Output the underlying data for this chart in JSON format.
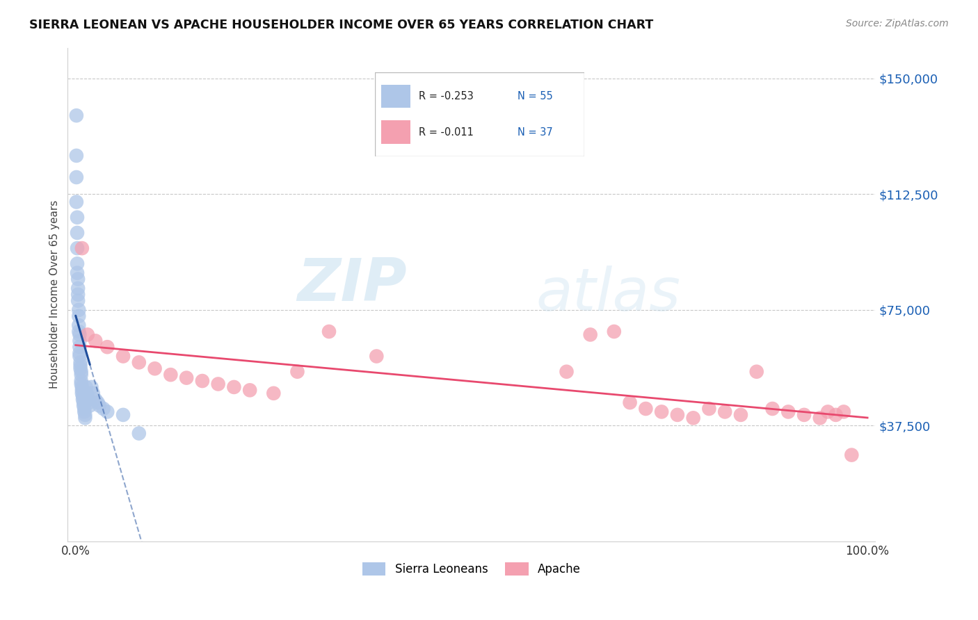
{
  "title": "SIERRA LEONEAN VS APACHE HOUSEHOLDER INCOME OVER 65 YEARS CORRELATION CHART",
  "source": "Source: ZipAtlas.com",
  "ylabel": "Householder Income Over 65 years",
  "legend_bottom": [
    "Sierra Leoneans",
    "Apache"
  ],
  "r_sierra": -0.253,
  "n_sierra": 55,
  "r_apache": -0.011,
  "n_apache": 37,
  "y_ticks": [
    37500,
    75000,
    112500,
    150000
  ],
  "y_tick_labels": [
    "$37,500",
    "$75,000",
    "$112,500",
    "$150,000"
  ],
  "sierra_color": "#aec6e8",
  "apache_color": "#f4a0b0",
  "sierra_line_color": "#1f4e9c",
  "apache_line_color": "#e8496e",
  "watermark_zip": "ZIP",
  "watermark_atlas": "atlas",
  "sierra_x": [
    0.001,
    0.001,
    0.001,
    0.001,
    0.002,
    0.002,
    0.002,
    0.002,
    0.002,
    0.003,
    0.003,
    0.003,
    0.003,
    0.004,
    0.004,
    0.004,
    0.004,
    0.005,
    0.005,
    0.005,
    0.005,
    0.005,
    0.006,
    0.006,
    0.006,
    0.007,
    0.007,
    0.007,
    0.007,
    0.008,
    0.008,
    0.008,
    0.009,
    0.009,
    0.01,
    0.01,
    0.011,
    0.011,
    0.012,
    0.012,
    0.013,
    0.014,
    0.015,
    0.016,
    0.017,
    0.018,
    0.02,
    0.022,
    0.025,
    0.028,
    0.03,
    0.035,
    0.04,
    0.06,
    0.08
  ],
  "sierra_y": [
    138000,
    125000,
    118000,
    110000,
    105000,
    100000,
    95000,
    90000,
    87000,
    85000,
    82000,
    80000,
    78000,
    75000,
    73000,
    70000,
    68000,
    67000,
    65000,
    63000,
    61000,
    60000,
    58000,
    57000,
    56000,
    55000,
    54000,
    52000,
    51000,
    50000,
    49000,
    48000,
    47000,
    46000,
    45000,
    44000,
    43000,
    42000,
    41000,
    40000,
    50000,
    48000,
    47000,
    46000,
    45000,
    44000,
    50000,
    48000,
    46000,
    45000,
    44000,
    43000,
    42000,
    41000,
    35000
  ],
  "apache_x": [
    0.008,
    0.015,
    0.025,
    0.04,
    0.06,
    0.08,
    0.1,
    0.12,
    0.14,
    0.16,
    0.18,
    0.2,
    0.22,
    0.25,
    0.28,
    0.32,
    0.38,
    0.62,
    0.65,
    0.68,
    0.7,
    0.72,
    0.74,
    0.76,
    0.78,
    0.8,
    0.82,
    0.84,
    0.86,
    0.88,
    0.9,
    0.92,
    0.94,
    0.95,
    0.96,
    0.97,
    0.98
  ],
  "apache_y": [
    95000,
    67000,
    65000,
    63000,
    60000,
    58000,
    56000,
    54000,
    53000,
    52000,
    51000,
    50000,
    49000,
    48000,
    55000,
    68000,
    60000,
    55000,
    67000,
    68000,
    45000,
    43000,
    42000,
    41000,
    40000,
    43000,
    42000,
    41000,
    55000,
    43000,
    42000,
    41000,
    40000,
    42000,
    41000,
    42000,
    28000
  ],
  "ylim_min": 0,
  "ylim_max": 160000,
  "xlim_min": -0.01,
  "xlim_max": 1.01
}
